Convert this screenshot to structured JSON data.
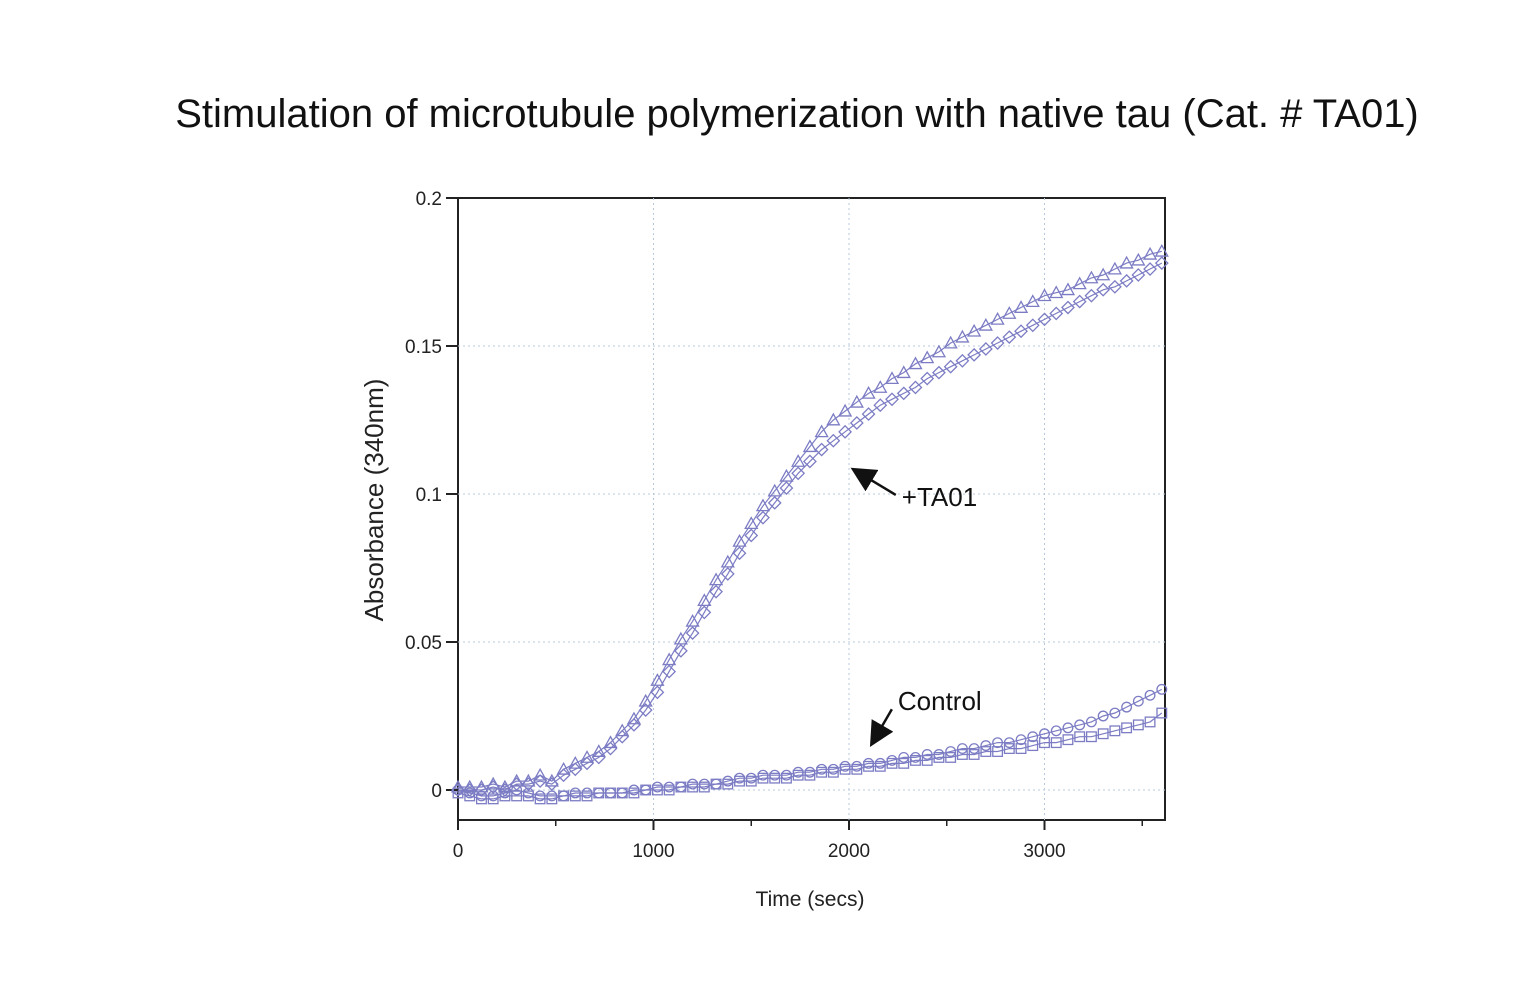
{
  "chart_data": {
    "type": "scatter",
    "title": "Stimulation of microtubule polymerization with native tau (Cat. # TA01)",
    "xlabel": "Time (secs)",
    "ylabel": "Absorbance (340nm)",
    "xlim": [
      0,
      3650
    ],
    "ylim": [
      -0.01,
      0.2
    ],
    "x_ticks": [
      0,
      1000,
      2000,
      3000
    ],
    "x_tick_labels": [
      "0",
      "1000",
      "2000",
      "3000"
    ],
    "y_ticks": [
      0,
      0.05,
      0.1,
      0.15,
      0.2
    ],
    "y_tick_labels": [
      "0",
      "0.05",
      "0.1",
      "0.15",
      "0.2"
    ],
    "grid": true,
    "marker_color": "#7c7cc4",
    "annotations": [
      {
        "text": "+TA01",
        "x": 2270,
        "y": 0.099,
        "arrow_to": [
          2030,
          0.108
        ]
      },
      {
        "text": "Control",
        "x": 2250,
        "y": 0.03,
        "arrow_to": [
          2120,
          0.016
        ]
      }
    ],
    "series": [
      {
        "marker": "triangle",
        "x": [
          0,
          60,
          120,
          180,
          240,
          300,
          360,
          420,
          480,
          540,
          600,
          660,
          720,
          780,
          840,
          900,
          960,
          1020,
          1080,
          1140,
          1200,
          1260,
          1320,
          1380,
          1440,
          1500,
          1560,
          1620,
          1680,
          1740,
          1800,
          1860,
          1920,
          1980,
          2040,
          2100,
          2160,
          2220,
          2280,
          2340,
          2400,
          2460,
          2520,
          2580,
          2640,
          2700,
          2760,
          2820,
          2880,
          2940,
          3000,
          3060,
          3120,
          3180,
          3240,
          3300,
          3360,
          3420,
          3480,
          3540,
          3600
        ],
        "y": [
          0.001,
          0.001,
          0.001,
          0.002,
          0.001,
          0.003,
          0.003,
          0.005,
          0.003,
          0.007,
          0.009,
          0.011,
          0.013,
          0.016,
          0.02,
          0.024,
          0.03,
          0.037,
          0.044,
          0.051,
          0.057,
          0.064,
          0.071,
          0.077,
          0.084,
          0.09,
          0.096,
          0.101,
          0.106,
          0.111,
          0.116,
          0.121,
          0.125,
          0.128,
          0.131,
          0.134,
          0.136,
          0.139,
          0.141,
          0.144,
          0.146,
          0.148,
          0.151,
          0.153,
          0.155,
          0.157,
          0.159,
          0.161,
          0.163,
          0.165,
          0.167,
          0.168,
          0.169,
          0.171,
          0.173,
          0.174,
          0.176,
          0.178,
          0.179,
          0.181,
          0.182
        ]
      },
      {
        "marker": "diamond",
        "x": [
          0,
          60,
          120,
          180,
          240,
          300,
          360,
          420,
          480,
          540,
          600,
          660,
          720,
          780,
          840,
          900,
          960,
          1020,
          1080,
          1140,
          1200,
          1260,
          1320,
          1380,
          1440,
          1500,
          1560,
          1620,
          1680,
          1740,
          1800,
          1860,
          1920,
          1980,
          2040,
          2100,
          2160,
          2220,
          2280,
          2340,
          2400,
          2460,
          2520,
          2580,
          2640,
          2700,
          2760,
          2820,
          2880,
          2940,
          3000,
          3060,
          3120,
          3180,
          3240,
          3300,
          3360,
          3420,
          3480,
          3540,
          3600
        ],
        "y": [
          0.0,
          0.0,
          0.0,
          0.001,
          0.0,
          0.002,
          0.002,
          0.003,
          0.002,
          0.005,
          0.007,
          0.009,
          0.011,
          0.014,
          0.018,
          0.022,
          0.027,
          0.033,
          0.04,
          0.047,
          0.053,
          0.06,
          0.067,
          0.073,
          0.08,
          0.086,
          0.092,
          0.097,
          0.102,
          0.107,
          0.111,
          0.115,
          0.118,
          0.121,
          0.124,
          0.127,
          0.13,
          0.132,
          0.134,
          0.136,
          0.139,
          0.141,
          0.143,
          0.145,
          0.147,
          0.149,
          0.151,
          0.153,
          0.155,
          0.157,
          0.159,
          0.161,
          0.163,
          0.165,
          0.167,
          0.169,
          0.17,
          0.172,
          0.174,
          0.176,
          0.178
        ]
      },
      {
        "marker": "circle",
        "x": [
          0,
          60,
          120,
          180,
          240,
          300,
          360,
          420,
          480,
          540,
          600,
          660,
          720,
          780,
          840,
          900,
          960,
          1020,
          1080,
          1140,
          1200,
          1260,
          1320,
          1380,
          1440,
          1500,
          1560,
          1620,
          1680,
          1740,
          1800,
          1860,
          1920,
          1980,
          2040,
          2100,
          2160,
          2220,
          2280,
          2340,
          2400,
          2460,
          2520,
          2580,
          2640,
          2700,
          2760,
          2820,
          2880,
          2940,
          3000,
          3060,
          3120,
          3180,
          3240,
          3300,
          3360,
          3420,
          3480,
          3540,
          3600
        ],
        "y": [
          0.0,
          -0.001,
          -0.002,
          -0.002,
          -0.001,
          0.0,
          -0.001,
          -0.002,
          -0.002,
          -0.002,
          -0.001,
          -0.001,
          -0.001,
          -0.001,
          -0.001,
          0.0,
          0.0,
          0.001,
          0.001,
          0.001,
          0.002,
          0.002,
          0.002,
          0.003,
          0.004,
          0.004,
          0.005,
          0.005,
          0.005,
          0.006,
          0.006,
          0.007,
          0.007,
          0.008,
          0.008,
          0.009,
          0.009,
          0.01,
          0.011,
          0.011,
          0.012,
          0.012,
          0.013,
          0.014,
          0.014,
          0.015,
          0.016,
          0.016,
          0.017,
          0.018,
          0.019,
          0.02,
          0.021,
          0.022,
          0.023,
          0.025,
          0.026,
          0.028,
          0.03,
          0.032,
          0.034
        ]
      },
      {
        "marker": "square",
        "x": [
          0,
          60,
          120,
          180,
          240,
          300,
          360,
          420,
          480,
          540,
          600,
          660,
          720,
          780,
          840,
          900,
          960,
          1020,
          1080,
          1140,
          1200,
          1260,
          1320,
          1380,
          1440,
          1500,
          1560,
          1620,
          1680,
          1740,
          1800,
          1860,
          1920,
          1980,
          2040,
          2100,
          2160,
          2220,
          2280,
          2340,
          2400,
          2460,
          2520,
          2580,
          2640,
          2700,
          2760,
          2820,
          2880,
          2940,
          3000,
          3060,
          3120,
          3180,
          3240,
          3300,
          3360,
          3420,
          3480,
          3540,
          3600
        ],
        "y": [
          -0.001,
          -0.002,
          -0.003,
          -0.003,
          -0.002,
          -0.002,
          -0.002,
          -0.003,
          -0.003,
          -0.002,
          -0.002,
          -0.002,
          -0.001,
          -0.001,
          -0.001,
          -0.001,
          0.0,
          0.0,
          0.0,
          0.001,
          0.001,
          0.001,
          0.002,
          0.002,
          0.003,
          0.003,
          0.004,
          0.004,
          0.004,
          0.005,
          0.005,
          0.006,
          0.006,
          0.007,
          0.007,
          0.008,
          0.008,
          0.009,
          0.009,
          0.01,
          0.01,
          0.011,
          0.011,
          0.012,
          0.012,
          0.013,
          0.013,
          0.014,
          0.014,
          0.015,
          0.016,
          0.016,
          0.017,
          0.018,
          0.018,
          0.019,
          0.02,
          0.021,
          0.022,
          0.023,
          0.026
        ]
      }
    ]
  }
}
